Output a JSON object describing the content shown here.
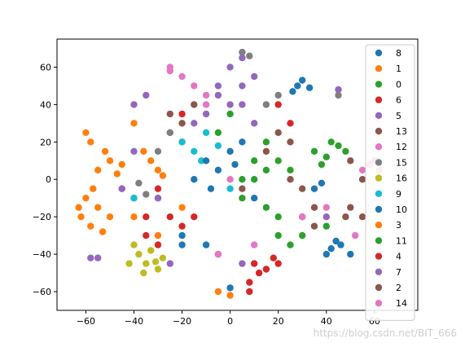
{
  "chart_data": {
    "type": "scatter",
    "title": "",
    "xlabel": "",
    "ylabel": "",
    "xlim": [
      -72,
      78
    ],
    "ylim": [
      -70,
      75
    ],
    "xticks": [
      -60,
      -40,
      -20,
      0,
      20,
      40,
      60
    ],
    "yticks": [
      -60,
      -40,
      -20,
      0,
      20,
      40,
      60
    ],
    "grid": false,
    "legend_position": "right",
    "series": [
      {
        "name": "8",
        "color": "#1f77b4",
        "points": [
          [
            28,
            50
          ],
          [
            30,
            53
          ],
          [
            33,
            49
          ],
          [
            26,
            47
          ],
          [
            42,
            -37
          ],
          [
            46,
            -35
          ],
          [
            50,
            -40
          ],
          [
            40,
            -40
          ],
          [
            44,
            -33
          ],
          [
            35,
            -5
          ],
          [
            38,
            -2
          ],
          [
            -20,
            -30
          ],
          [
            -10,
            -35
          ]
        ]
      },
      {
        "name": "1",
        "color": "#ff7f0e",
        "points": [
          [
            -55,
            5
          ],
          [
            -50,
            10
          ],
          [
            -47,
            3
          ],
          [
            -58,
            20
          ],
          [
            -52,
            15
          ],
          [
            -60,
            25
          ],
          [
            -45,
            8
          ],
          [
            -40,
            30
          ],
          [
            -30,
            5
          ],
          [
            -33,
            10
          ],
          [
            -28,
            2
          ],
          [
            -36,
            15
          ],
          [
            -30,
            -10
          ],
          [
            -40,
            -20
          ]
        ]
      },
      {
        "name": "0",
        "color": "#2ca02c",
        "points": [
          [
            35,
            15
          ],
          [
            40,
            12
          ],
          [
            45,
            18
          ],
          [
            38,
            8
          ],
          [
            42,
            20
          ],
          [
            48,
            15
          ],
          [
            10,
            10
          ],
          [
            15,
            5
          ],
          [
            5,
            0
          ],
          [
            0,
            35
          ],
          [
            20,
            -30
          ],
          [
            25,
            -35
          ]
        ]
      },
      {
        "name": "6",
        "color": "#d62728",
        "points": [
          [
            10,
            -45
          ],
          [
            15,
            -48
          ],
          [
            18,
            -42
          ],
          [
            12,
            -50
          ],
          [
            8,
            -55
          ],
          [
            20,
            -45
          ],
          [
            -30,
            -5
          ],
          [
            -25,
            -20
          ],
          [
            -20,
            -25
          ],
          [
            -35,
            -20
          ]
        ]
      },
      {
        "name": "5",
        "color": "#9467bd",
        "points": [
          [
            -40,
            40
          ],
          [
            -35,
            45
          ],
          [
            0,
            60
          ],
          [
            5,
            65
          ],
          [
            -5,
            50
          ],
          [
            10,
            55
          ],
          [
            -30,
            -10
          ],
          [
            -25,
            -45
          ],
          [
            -55,
            -42
          ],
          [
            40,
            -20
          ],
          [
            5,
            -45
          ],
          [
            45,
            48
          ]
        ]
      },
      {
        "name": "13",
        "color": "#8c564b",
        "points": [
          [
            50,
            10
          ],
          [
            55,
            0
          ],
          [
            50,
            -15
          ],
          [
            48,
            -20
          ],
          [
            25,
            0
          ],
          [
            30,
            -5
          ],
          [
            35,
            -15
          ],
          [
            -25,
            25
          ],
          [
            -20,
            20
          ],
          [
            15,
            15
          ]
        ]
      },
      {
        "name": "12",
        "color": "#e377c2",
        "points": [
          [
            -25,
            60
          ],
          [
            -20,
            55
          ],
          [
            -15,
            50
          ],
          [
            -10,
            40
          ],
          [
            55,
            5
          ],
          [
            52,
            -30
          ],
          [
            10,
            -35
          ],
          [
            0,
            0
          ]
        ]
      },
      {
        "name": "15",
        "color": "#7f7f7f",
        "points": [
          [
            -45,
            -5
          ],
          [
            -40,
            -10
          ],
          [
            -38,
            -2
          ],
          [
            -35,
            -8
          ],
          [
            5,
            68
          ],
          [
            8,
            66
          ],
          [
            15,
            40
          ],
          [
            20,
            45
          ],
          [
            45,
            45
          ],
          [
            -30,
            15
          ],
          [
            -25,
            25
          ]
        ]
      },
      {
        "name": "16",
        "color": "#bcbd22",
        "points": [
          [
            -38,
            -40
          ],
          [
            -35,
            -45
          ],
          [
            -30,
            -48
          ],
          [
            -33,
            -38
          ],
          [
            -40,
            -35
          ],
          [
            -28,
            -42
          ],
          [
            -36,
            -50
          ],
          [
            -42,
            -45
          ],
          [
            -31,
            -44
          ]
        ]
      },
      {
        "name": "9",
        "color": "#17becf",
        "points": [
          [
            -20,
            20
          ],
          [
            -15,
            15
          ],
          [
            -10,
            25
          ],
          [
            -5,
            18
          ],
          [
            -12,
            10
          ],
          [
            -40,
            -10
          ],
          [
            0,
            -5
          ]
        ]
      },
      {
        "name": "10",
        "color": "#1f77b4",
        "points": [
          [
            -10,
            10
          ],
          [
            -5,
            5
          ],
          [
            0,
            15
          ],
          [
            5,
            20
          ],
          [
            -15,
            0
          ],
          [
            -8,
            -5
          ],
          [
            2,
            8
          ],
          [
            10,
            -10
          ],
          [
            -20,
            -35
          ],
          [
            -5,
            -40
          ],
          [
            0,
            -58
          ]
        ]
      },
      {
        "name": "3",
        "color": "#ff7f0e",
        "points": [
          [
            -62,
            -20
          ],
          [
            -58,
            -25
          ],
          [
            -55,
            -15
          ],
          [
            -60,
            -10
          ],
          [
            -50,
            -20
          ],
          [
            -57,
            -5
          ],
          [
            -63,
            -15
          ],
          [
            -53,
            -28
          ],
          [
            -30,
            -30
          ],
          [
            -20,
            -15
          ],
          [
            0,
            -62
          ],
          [
            -5,
            -60
          ]
        ]
      },
      {
        "name": "11",
        "color": "#2ca02c",
        "points": [
          [
            15,
            20
          ],
          [
            20,
            10
          ],
          [
            10,
            0
          ],
          [
            25,
            5
          ],
          [
            5,
            -10
          ],
          [
            15,
            -15
          ],
          [
            -5,
            25
          ],
          [
            20,
            -20
          ],
          [
            40,
            -25
          ],
          [
            30,
            -30
          ]
        ]
      },
      {
        "name": "4",
        "color": "#d62728",
        "points": [
          [
            -35,
            -30
          ],
          [
            -30,
            -35
          ],
          [
            -15,
            -20
          ],
          [
            20,
            40
          ],
          [
            25,
            30
          ],
          [
            -20,
            35
          ],
          [
            8,
            -60
          ]
        ]
      },
      {
        "name": "7",
        "color": "#9467bd",
        "points": [
          [
            -5,
            45
          ],
          [
            0,
            40
          ],
          [
            5,
            50
          ],
          [
            -10,
            35
          ],
          [
            10,
            30
          ],
          [
            -15,
            30
          ],
          [
            -40,
            15
          ],
          [
            -58,
            -42
          ],
          [
            -45,
            -5
          ],
          [
            5,
            40
          ]
        ]
      },
      {
        "name": "2",
        "color": "#8c564b",
        "points": [
          [
            -25,
            35
          ],
          [
            -20,
            30
          ],
          [
            -15,
            40
          ],
          [
            20,
            25
          ],
          [
            25,
            20
          ],
          [
            30,
            -20
          ],
          [
            35,
            -25
          ],
          [
            55,
            -20
          ],
          [
            60,
            10
          ],
          [
            5,
            -5
          ]
        ]
      },
      {
        "name": "14",
        "color": "#e377c2",
        "points": [
          [
            60,
            10
          ],
          [
            62,
            5
          ],
          [
            58,
            8
          ],
          [
            -25,
            58
          ],
          [
            -10,
            45
          ],
          [
            -5,
            -40
          ],
          [
            40,
            -15
          ],
          [
            30,
            -20
          ]
        ]
      }
    ]
  },
  "watermark": "https://blog.csdn.net/BIT_666"
}
